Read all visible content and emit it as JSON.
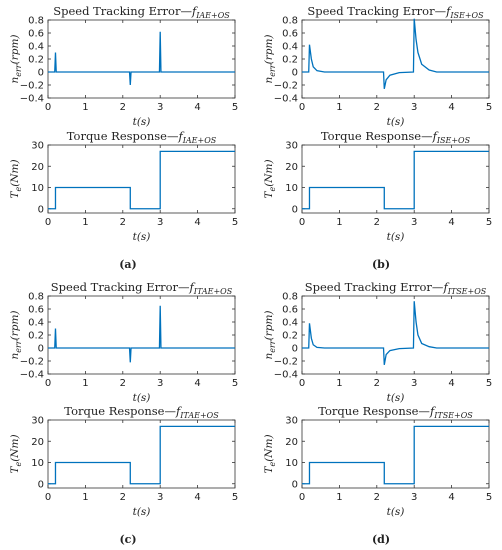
{
  "chart_data": [
    {
      "type": "line",
      "panel": "a",
      "title": "Speed Tracking Error—f_IAE+OS",
      "xlabel": "t(s)",
      "ylabel": "n_err(rpm)",
      "xlim": [
        0,
        5
      ],
      "ylim": [
        -0.4,
        0.8
      ],
      "xticks": [
        "0",
        "1",
        "2",
        "3",
        "4",
        "5"
      ],
      "yticks": [
        "0.8",
        "0.6",
        "0.4",
        "0.2",
        "0",
        "−0.2",
        "−0.4"
      ],
      "series": [
        {
          "x": [
            0,
            0.18,
            0.2,
            0.22,
            2.18,
            2.2,
            2.22,
            2.98,
            3.0,
            3.02,
            5
          ],
          "y": [
            0,
            0,
            0.3,
            0,
            0,
            -0.2,
            0,
            0,
            0.62,
            0,
            0
          ]
        }
      ],
      "color": "#0072BD"
    },
    {
      "type": "line",
      "panel": "a",
      "title": "Torque Response—f_IAE+OS",
      "xlabel": "t(s)",
      "ylabel": "T_e(Nm)",
      "xlim": [
        0,
        5
      ],
      "ylim": [
        -2,
        30
      ],
      "xticks": [
        "0",
        "1",
        "2",
        "3",
        "4",
        "5"
      ],
      "yticks": [
        "30",
        "20",
        "10",
        "0"
      ],
      "series": [
        {
          "x": [
            0,
            0.2,
            0.2,
            2.2,
            2.2,
            3.0,
            3.0,
            5
          ],
          "y": [
            0,
            0,
            10,
            10,
            0,
            0,
            27,
            27
          ]
        }
      ],
      "color": "#0072BD"
    },
    {
      "type": "line",
      "panel": "b",
      "title": "Speed Tracking Error—f_ISE+OS",
      "xlabel": "t(s)",
      "ylabel": "n_err(rpm)",
      "xlim": [
        0,
        5
      ],
      "ylim": [
        -0.4,
        0.8
      ],
      "xticks": [
        "0",
        "1",
        "2",
        "3",
        "4",
        "5"
      ],
      "yticks": [
        "0.8",
        "0.6",
        "0.4",
        "0.2",
        "0",
        "−0.2",
        "−0.4"
      ],
      "series": [
        {
          "x": [
            0,
            0.18,
            0.2,
            0.25,
            0.3,
            0.4,
            0.6,
            2.18,
            2.2,
            2.25,
            2.35,
            2.6,
            2.98,
            3.0,
            3.05,
            3.1,
            3.2,
            3.4,
            3.6,
            5
          ],
          "y": [
            0,
            0,
            0.42,
            0.2,
            0.08,
            0.02,
            0,
            0,
            -0.26,
            -0.12,
            -0.05,
            -0.01,
            0,
            0.82,
            0.5,
            0.3,
            0.12,
            0.03,
            0,
            0
          ]
        }
      ],
      "color": "#0072BD"
    },
    {
      "type": "line",
      "panel": "b",
      "title": "Torque Response—f_ISE+OS",
      "xlabel": "t(s)",
      "ylabel": "T_e(Nm)",
      "xlim": [
        0,
        5
      ],
      "ylim": [
        -2,
        30
      ],
      "xticks": [
        "0",
        "1",
        "2",
        "3",
        "4",
        "5"
      ],
      "yticks": [
        "30",
        "20",
        "10",
        "0"
      ],
      "series": [
        {
          "x": [
            0,
            0.2,
            0.2,
            2.2,
            2.2,
            3.0,
            3.0,
            5
          ],
          "y": [
            0,
            0,
            10,
            10,
            0,
            0,
            27,
            27
          ]
        }
      ],
      "color": "#0072BD"
    },
    {
      "type": "line",
      "panel": "c",
      "title": "Speed Tracking Error—f_ITAE+OS",
      "xlabel": "t(s)",
      "ylabel": "n_err(rpm)",
      "xlim": [
        0,
        5
      ],
      "ylim": [
        -0.4,
        0.8
      ],
      "xticks": [
        "0",
        "1",
        "2",
        "3",
        "4",
        "5"
      ],
      "yticks": [
        "0.8",
        "0.6",
        "0.4",
        "0.2",
        "0",
        "−0.2",
        "−0.4"
      ],
      "series": [
        {
          "x": [
            0,
            0.18,
            0.2,
            0.22,
            2.18,
            2.2,
            2.22,
            2.98,
            3.0,
            3.02,
            5
          ],
          "y": [
            0,
            0,
            0.3,
            0,
            0,
            -0.22,
            0,
            0,
            0.65,
            0,
            0
          ]
        }
      ],
      "color": "#0072BD"
    },
    {
      "type": "line",
      "panel": "c",
      "title": "Torque Response—f_ITAE+OS",
      "xlabel": "t(s)",
      "ylabel": "T_e(Nm)",
      "xlim": [
        0,
        5
      ],
      "ylim": [
        -2,
        30
      ],
      "xticks": [
        "0",
        "1",
        "2",
        "3",
        "4",
        "5"
      ],
      "yticks": [
        "30",
        "20",
        "10",
        "0"
      ],
      "series": [
        {
          "x": [
            0,
            0.2,
            0.2,
            2.2,
            2.2,
            3.0,
            3.0,
            5
          ],
          "y": [
            0,
            0,
            10,
            10,
            0,
            0,
            27,
            27
          ]
        }
      ],
      "color": "#0072BD"
    },
    {
      "type": "line",
      "panel": "d",
      "title": "Speed Tracking Error—f_ITSE+OS",
      "xlabel": "t(s)",
      "ylabel": "n_err(rpm)",
      "xlim": [
        0,
        5
      ],
      "ylim": [
        -0.4,
        0.8
      ],
      "xticks": [
        "0",
        "1",
        "2",
        "3",
        "4",
        "5"
      ],
      "yticks": [
        "0.8",
        "0.6",
        "0.4",
        "0.2",
        "0",
        "−0.2",
        "−0.4"
      ],
      "series": [
        {
          "x": [
            0,
            0.18,
            0.2,
            0.25,
            0.3,
            0.4,
            0.6,
            2.18,
            2.2,
            2.25,
            2.35,
            2.6,
            2.98,
            3.0,
            3.05,
            3.1,
            3.2,
            3.4,
            3.6,
            5
          ],
          "y": [
            0,
            0,
            0.38,
            0.15,
            0.05,
            0.01,
            0,
            0,
            -0.26,
            -0.1,
            -0.04,
            -0.01,
            0,
            0.72,
            0.4,
            0.2,
            0.07,
            0.02,
            0,
            0
          ]
        }
      ],
      "color": "#0072BD"
    },
    {
      "type": "line",
      "panel": "d",
      "title": "Torque Response—f_ITSE+OS",
      "xlabel": "t(s)",
      "ylabel": "T_e(Nm)",
      "xlim": [
        0,
        5
      ],
      "ylim": [
        -2,
        30
      ],
      "xticks": [
        "0",
        "1",
        "2",
        "3",
        "4",
        "5"
      ],
      "yticks": [
        "30",
        "20",
        "10",
        "0"
      ],
      "series": [
        {
          "x": [
            0,
            0.2,
            0.2,
            2.2,
            2.2,
            3.0,
            3.0,
            5
          ],
          "y": [
            0,
            0,
            10,
            10,
            0,
            0,
            27,
            27
          ]
        }
      ],
      "color": "#0072BD"
    }
  ],
  "captions": [
    "(a)",
    "(b)",
    "(c)",
    "(d)"
  ]
}
